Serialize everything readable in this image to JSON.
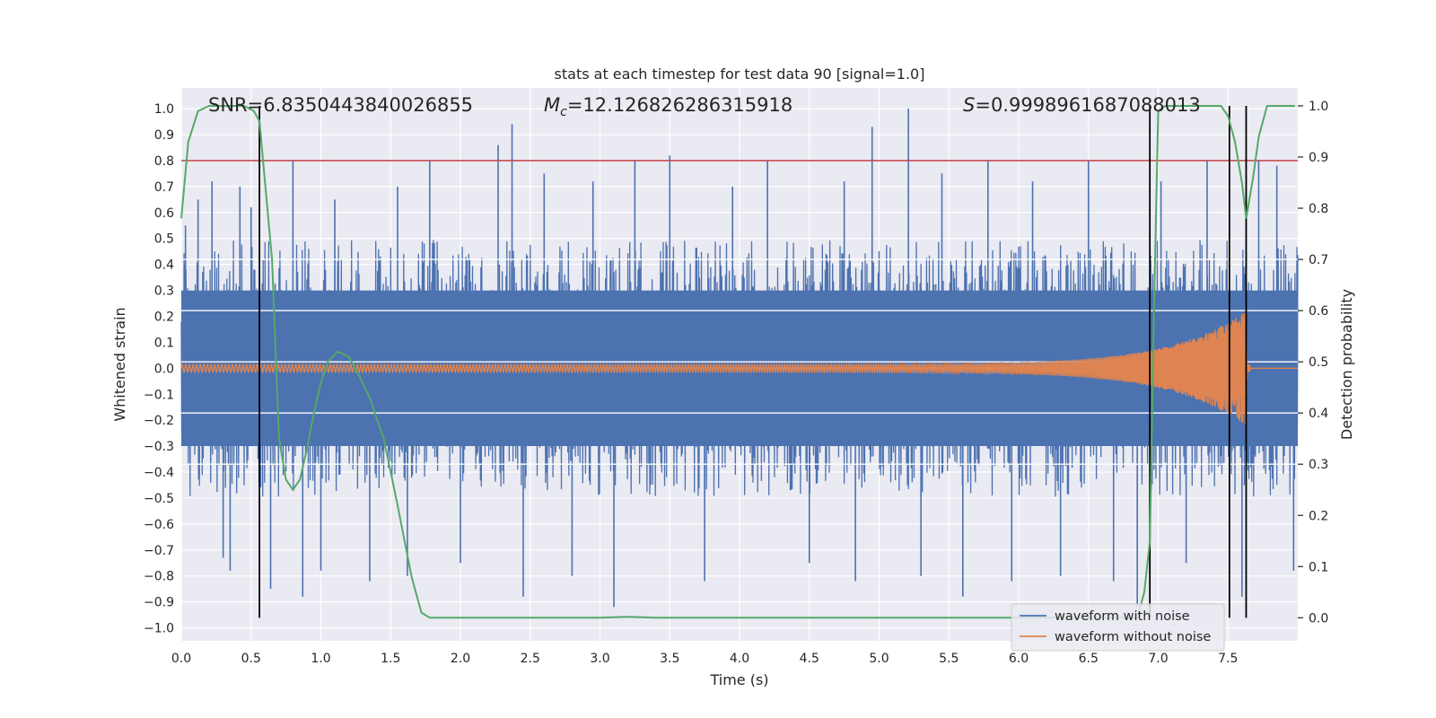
{
  "chart_data": {
    "type": "line",
    "title": "stats at each timestep for test data 90 [signal=1.0]",
    "xlabel": "Time (s)",
    "ylabel": "Whitened strain",
    "ylabel_right": "Detection probability",
    "xlim": [
      0.0,
      8.0
    ],
    "ylim": [
      -1.05,
      1.08
    ],
    "ylim_right": [
      -0.045,
      1.035
    ],
    "x_ticks": [
      "0.0",
      "0.5",
      "1.0",
      "1.5",
      "2.0",
      "2.5",
      "3.0",
      "3.5",
      "4.0",
      "4.5",
      "5.0",
      "5.5",
      "6.0",
      "6.5",
      "7.0",
      "7.5"
    ],
    "y_ticks": [
      "1.0",
      "0.9",
      "0.8",
      "0.7",
      "0.6",
      "0.5",
      "0.4",
      "0.3",
      "0.2",
      "0.1",
      "0.0",
      "−0.1",
      "−0.2",
      "−0.3",
      "−0.4",
      "−0.5",
      "−0.6",
      "−0.7",
      "−0.8",
      "−0.9",
      "−1.0"
    ],
    "y_ticks_right": [
      "1.0",
      "0.9",
      "0.8",
      "0.7",
      "0.6",
      "0.5",
      "0.4",
      "0.3",
      "0.2",
      "0.1",
      "0.0"
    ],
    "stats": {
      "snr": "SNR=6.8350443840026855",
      "mc_symbol": "M",
      "mc_sub": "c",
      "mc_value": "=12.126826286315918",
      "s_symbol": "S",
      "s_value": "=0.9998961687088013"
    },
    "threshold": {
      "axis": "left",
      "value": 0.8,
      "color": "#c44e52"
    },
    "right_gridlines": [
      0.3,
      0.4,
      0.5,
      0.6,
      0.7
    ],
    "vertical_markers": [
      0.56,
      6.94,
      7.51,
      7.63
    ],
    "series": [
      {
        "name": "waveform with noise",
        "axis": "left",
        "color": "#4c72b0",
        "envelope_typical": 0.45,
        "spikes": [
          {
            "x": 0.03,
            "y": 0.55
          },
          {
            "x": 0.12,
            "y": 0.65
          },
          {
            "x": 0.22,
            "y": 0.72
          },
          {
            "x": 0.3,
            "y": -0.73
          },
          {
            "x": 0.35,
            "y": -0.78
          },
          {
            "x": 0.42,
            "y": 0.7
          },
          {
            "x": 0.5,
            "y": 0.62
          },
          {
            "x": 0.64,
            "y": -0.85
          },
          {
            "x": 0.8,
            "y": 0.8
          },
          {
            "x": 0.87,
            "y": -0.88
          },
          {
            "x": 1.0,
            "y": -0.78
          },
          {
            "x": 1.1,
            "y": 0.65
          },
          {
            "x": 1.35,
            "y": -0.82
          },
          {
            "x": 1.55,
            "y": 0.7
          },
          {
            "x": 1.62,
            "y": -0.8
          },
          {
            "x": 1.78,
            "y": 0.8
          },
          {
            "x": 2.0,
            "y": -0.75
          },
          {
            "x": 2.27,
            "y": 0.86
          },
          {
            "x": 2.37,
            "y": 0.94
          },
          {
            "x": 2.45,
            "y": -0.88
          },
          {
            "x": 2.6,
            "y": 0.75
          },
          {
            "x": 2.8,
            "y": -0.8
          },
          {
            "x": 2.95,
            "y": 0.72
          },
          {
            "x": 3.1,
            "y": -0.92
          },
          {
            "x": 3.25,
            "y": 0.8
          },
          {
            "x": 3.5,
            "y": 0.82
          },
          {
            "x": 3.75,
            "y": -0.82
          },
          {
            "x": 3.95,
            "y": 0.7
          },
          {
            "x": 4.2,
            "y": 0.8
          },
          {
            "x": 4.5,
            "y": -0.75
          },
          {
            "x": 4.75,
            "y": 0.72
          },
          {
            "x": 4.83,
            "y": -0.82
          },
          {
            "x": 4.95,
            "y": 0.93
          },
          {
            "x": 5.21,
            "y": 1.0
          },
          {
            "x": 5.3,
            "y": -0.8
          },
          {
            "x": 5.45,
            "y": 0.75
          },
          {
            "x": 5.6,
            "y": -0.88
          },
          {
            "x": 5.78,
            "y": 0.8
          },
          {
            "x": 5.95,
            "y": -0.82
          },
          {
            "x": 6.1,
            "y": 0.72
          },
          {
            "x": 6.3,
            "y": -0.8
          },
          {
            "x": 6.5,
            "y": 0.8
          },
          {
            "x": 6.68,
            "y": -0.82
          },
          {
            "x": 6.85,
            "y": -0.92
          },
          {
            "x": 7.02,
            "y": 0.72
          },
          {
            "x": 7.2,
            "y": -0.75
          },
          {
            "x": 7.35,
            "y": 0.8
          },
          {
            "x": 7.6,
            "y": -0.88
          },
          {
            "x": 7.72,
            "y": 0.8
          },
          {
            "x": 7.85,
            "y": 0.78
          },
          {
            "x": 7.97,
            "y": -0.78
          }
        ]
      },
      {
        "name": "waveform without noise",
        "axis": "left",
        "color": "#dd8452",
        "chirp": {
          "t_merger": 7.63,
          "amp_start": 0.015,
          "amp_peak": 0.22,
          "ringdown_end": 7.66
        }
      },
      {
        "axis": "right",
        "color": "#55a868",
        "points": [
          [
            0.0,
            0.78
          ],
          [
            0.05,
            0.93
          ],
          [
            0.12,
            0.99
          ],
          [
            0.2,
            1.0
          ],
          [
            0.45,
            1.0
          ],
          [
            0.52,
            0.99
          ],
          [
            0.56,
            0.97
          ],
          [
            0.6,
            0.85
          ],
          [
            0.65,
            0.7
          ],
          [
            0.7,
            0.35
          ],
          [
            0.75,
            0.27
          ],
          [
            0.8,
            0.25
          ],
          [
            0.85,
            0.27
          ],
          [
            0.9,
            0.33
          ],
          [
            0.95,
            0.4
          ],
          [
            1.0,
            0.46
          ],
          [
            1.05,
            0.5
          ],
          [
            1.12,
            0.52
          ],
          [
            1.2,
            0.51
          ],
          [
            1.28,
            0.47
          ],
          [
            1.35,
            0.43
          ],
          [
            1.45,
            0.35
          ],
          [
            1.55,
            0.22
          ],
          [
            1.65,
            0.08
          ],
          [
            1.72,
            0.01
          ],
          [
            1.78,
            0.0
          ],
          [
            3.0,
            0.0
          ],
          [
            3.2,
            0.002
          ],
          [
            3.4,
            0.0
          ],
          [
            6.85,
            0.0
          ],
          [
            6.9,
            0.05
          ],
          [
            6.94,
            0.15
          ],
          [
            6.97,
            0.6
          ],
          [
            7.0,
            0.99
          ],
          [
            7.05,
            1.0
          ],
          [
            7.45,
            1.0
          ],
          [
            7.5,
            0.98
          ],
          [
            7.55,
            0.93
          ],
          [
            7.6,
            0.85
          ],
          [
            7.63,
            0.78
          ],
          [
            7.68,
            0.86
          ],
          [
            7.72,
            0.94
          ],
          [
            7.78,
            1.0
          ],
          [
            7.98,
            1.0
          ]
        ]
      }
    ],
    "legend": {
      "placement": "lower-right",
      "entries": [
        "waveform with noise",
        "waveform without noise"
      ]
    }
  },
  "colors": {
    "axes_bg": "#eaeaf2",
    "grid": "#ffffff",
    "text": "#262626",
    "marker": "#000000"
  }
}
